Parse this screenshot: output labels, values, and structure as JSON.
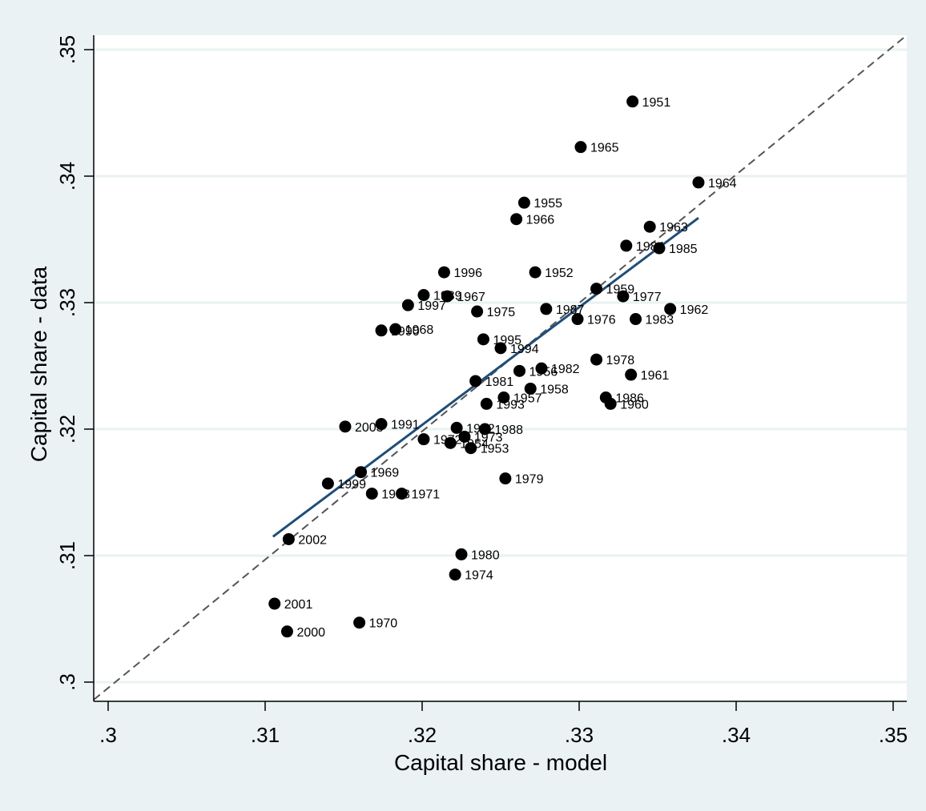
{
  "chart_data": {
    "type": "scatter",
    "xlabel": "Capital share - model",
    "ylabel": "Capital share - data",
    "xlim": [
      0.3,
      0.35
    ],
    "ylim": [
      0.3,
      0.35
    ],
    "x_ticks": [
      ".3",
      ".31",
      ".32",
      ".33",
      ".34",
      ".35"
    ],
    "y_ticks": [
      ".3",
      ".31",
      ".32",
      ".33",
      ".34",
      ".35"
    ],
    "grid": "horizontal",
    "legend": "none",
    "colors": {
      "background": "#eaf2f3",
      "plot_background": "#ffffff",
      "marker": "#000000",
      "fit_line": "#1f4e79",
      "reference_line": "#555555"
    },
    "reference_line": {
      "label": "",
      "x": [
        0.3,
        0.35
      ],
      "y": [
        0.3,
        0.35
      ],
      "style": "dashed"
    },
    "fit_line": {
      "x": [
        0.3105,
        0.3376
      ],
      "y": [
        0.3115,
        0.3367
      ]
    },
    "points": [
      {
        "label": "1951",
        "x": 0.3334,
        "y": 0.3459
      },
      {
        "label": "1965",
        "x": 0.3301,
        "y": 0.3423
      },
      {
        "label": "1964",
        "x": 0.3376,
        "y": 0.3395
      },
      {
        "label": "1955",
        "x": 0.3265,
        "y": 0.3379
      },
      {
        "label": "1966",
        "x": 0.326,
        "y": 0.3366
      },
      {
        "label": "1963",
        "x": 0.3345,
        "y": 0.336
      },
      {
        "label": "1984",
        "x": 0.333,
        "y": 0.3345
      },
      {
        "label": "1985",
        "x": 0.3351,
        "y": 0.3343
      },
      {
        "label": "1996",
        "x": 0.3214,
        "y": 0.3324
      },
      {
        "label": "1952",
        "x": 0.3272,
        "y": 0.3324
      },
      {
        "label": "1959",
        "x": 0.3311,
        "y": 0.3311
      },
      {
        "label": "1989",
        "x": 0.3201,
        "y": 0.3306
      },
      {
        "label": "1967",
        "x": 0.3216,
        "y": 0.3305
      },
      {
        "label": "1977",
        "x": 0.3328,
        "y": 0.3305
      },
      {
        "label": "1997",
        "x": 0.3191,
        "y": 0.3298
      },
      {
        "label": "1975",
        "x": 0.3235,
        "y": 0.3293
      },
      {
        "label": "1987",
        "x": 0.3279,
        "y": 0.3295
      },
      {
        "label": "1962",
        "x": 0.3358,
        "y": 0.3295
      },
      {
        "label": "1976",
        "x": 0.3299,
        "y": 0.3287
      },
      {
        "label": "1983",
        "x": 0.3336,
        "y": 0.3287
      },
      {
        "label": "1990",
        "x": 0.3174,
        "y": 0.3278
      },
      {
        "label": "1968",
        "x": 0.3183,
        "y": 0.3279
      },
      {
        "label": "1995",
        "x": 0.3239,
        "y": 0.3271
      },
      {
        "label": "1994",
        "x": 0.325,
        "y": 0.3264
      },
      {
        "label": "1978",
        "x": 0.3311,
        "y": 0.3255
      },
      {
        "label": "1956",
        "x": 0.3262,
        "y": 0.3246
      },
      {
        "label": "1982",
        "x": 0.3276,
        "y": 0.3248
      },
      {
        "label": "1961",
        "x": 0.3333,
        "y": 0.3243
      },
      {
        "label": "1981",
        "x": 0.3234,
        "y": 0.3238
      },
      {
        "label": "1958",
        "x": 0.3269,
        "y": 0.3232
      },
      {
        "label": "1957",
        "x": 0.3252,
        "y": 0.3225
      },
      {
        "label": "1993",
        "x": 0.3241,
        "y": 0.322
      },
      {
        "label": "1986",
        "x": 0.3317,
        "y": 0.3225
      },
      {
        "label": "1960",
        "x": 0.332,
        "y": 0.322
      },
      {
        "label": "2003",
        "x": 0.3151,
        "y": 0.3202
      },
      {
        "label": "1991",
        "x": 0.3174,
        "y": 0.3204
      },
      {
        "label": "1992",
        "x": 0.3222,
        "y": 0.3201
      },
      {
        "label": "1988",
        "x": 0.324,
        "y": 0.32
      },
      {
        "label": "1972",
        "x": 0.3201,
        "y": 0.3192
      },
      {
        "label": "1954",
        "x": 0.3218,
        "y": 0.3189
      },
      {
        "label": "1973",
        "x": 0.3227,
        "y": 0.3194
      },
      {
        "label": "1953",
        "x": 0.3231,
        "y": 0.3185
      },
      {
        "label": "1969",
        "x": 0.3161,
        "y": 0.3166
      },
      {
        "label": "1999",
        "x": 0.314,
        "y": 0.3157
      },
      {
        "label": "1998",
        "x": 0.3168,
        "y": 0.3149
      },
      {
        "label": "1971",
        "x": 0.3187,
        "y": 0.3149
      },
      {
        "label": "1979",
        "x": 0.3253,
        "y": 0.3161
      },
      {
        "label": "2002",
        "x": 0.3115,
        "y": 0.3113
      },
      {
        "label": "1980",
        "x": 0.3225,
        "y": 0.3101
      },
      {
        "label": "1974",
        "x": 0.3221,
        "y": 0.3085
      },
      {
        "label": "2001",
        "x": 0.3106,
        "y": 0.3062
      },
      {
        "label": "1970",
        "x": 0.316,
        "y": 0.3047
      },
      {
        "label": "2000",
        "x": 0.3114,
        "y": 0.304
      }
    ]
  }
}
